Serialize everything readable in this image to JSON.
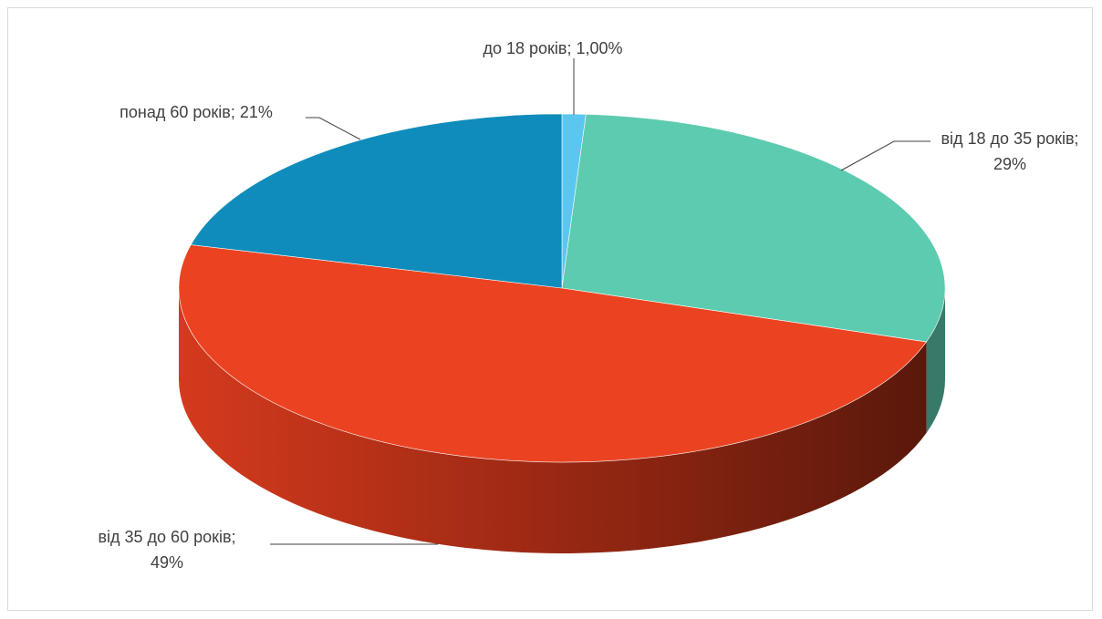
{
  "chart_data": {
    "type": "pie",
    "title": "",
    "style": "3d",
    "categories": [
      "до 18 років",
      "від 18 до 35 років",
      "від 35 до 60 років",
      "понад 60 років"
    ],
    "values": [
      1.0,
      29,
      49,
      21
    ],
    "value_labels": [
      "1,00%",
      "29%",
      "49%",
      "21%"
    ],
    "colors": [
      "#5BC7F0",
      "#5DCBAF",
      "#EB4322",
      "#0F8CBB"
    ],
    "labels": [
      {
        "line1": "до 18 років; 1,00%",
        "line2": ""
      },
      {
        "line1": "від 18 до 35 років;",
        "line2": "29%"
      },
      {
        "line1": "від 35 до 60 років;",
        "line2": "49%"
      },
      {
        "line1": "понад 60 років; 21%",
        "line2": ""
      }
    ],
    "legend": "none",
    "data_labels": "outside with leader lines"
  }
}
